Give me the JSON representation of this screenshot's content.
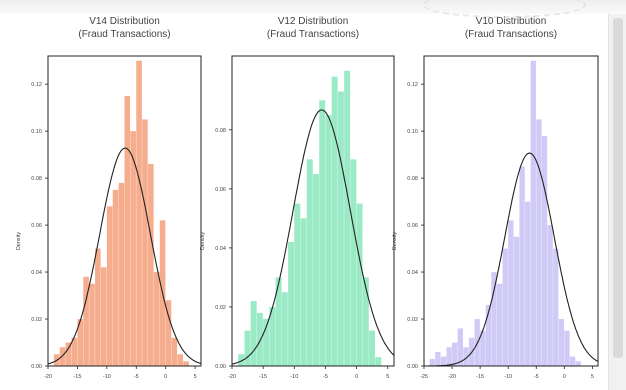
{
  "chart_data": [
    {
      "type": "histogram",
      "title": "V14 Distribution",
      "subtitle": "(Fraud Transactions)",
      "ylabel": "Density",
      "xlabel": "",
      "color": "#f4a482",
      "xlim": [
        -20,
        6
      ],
      "ylim": [
        0,
        0.132
      ],
      "xticks": [
        "-20",
        "-15",
        "-10",
        "-5",
        "0",
        "5"
      ],
      "yticks": [
        "0.00",
        "0.02",
        "0.04",
        "0.06",
        "0.08",
        "0.10",
        "0.12"
      ],
      "bins_x": [
        -18.5,
        -17.5,
        -16.5,
        -15.5,
        -14.5,
        -13.5,
        -12.5,
        -11.5,
        -10.5,
        -9.5,
        -8.5,
        -7.5,
        -6.5,
        -5.5,
        -4.5,
        -3.5,
        -2.5,
        -1.5,
        -0.5,
        0.5,
        1.5,
        2.5,
        3.5
      ],
      "bins_density": [
        0.005,
        0.008,
        0.01,
        0.012,
        0.02,
        0.038,
        0.035,
        0.05,
        0.042,
        0.068,
        0.075,
        0.078,
        0.115,
        0.1,
        0.13,
        0.105,
        0.086,
        0.04,
        0.062,
        0.028,
        0.012,
        0.005,
        0.002
      ],
      "fit": {
        "mean": -6.9,
        "std": 4.3
      }
    },
    {
      "type": "histogram",
      "title": "V12 Distribution",
      "subtitle": "(Fraud Transactions)",
      "ylabel": "Density",
      "xlabel": "",
      "color": "#8fe8bf",
      "xlim": [
        -20,
        6
      ],
      "ylim": [
        0,
        0.105
      ],
      "xticks": [
        "-20",
        "-15",
        "-10",
        "-5",
        "0",
        "5"
      ],
      "yticks": [
        "0.00",
        "0.02",
        "0.04",
        "0.06",
        "0.08"
      ],
      "bins_x": [
        -18.5,
        -17.5,
        -16.5,
        -15.5,
        -14.5,
        -13.5,
        -12.5,
        -11.5,
        -10.5,
        -9.5,
        -8.5,
        -7.5,
        -6.5,
        -5.5,
        -4.5,
        -3.5,
        -2.5,
        -1.5,
        -0.5,
        0.5,
        1.5,
        2.5,
        3.5
      ],
      "bins_density": [
        0.004,
        0.012,
        0.022,
        0.018,
        0.016,
        0.02,
        0.03,
        0.025,
        0.042,
        0.055,
        0.05,
        0.07,
        0.065,
        0.09,
        0.085,
        0.098,
        0.093,
        0.1,
        0.07,
        0.055,
        0.03,
        0.012,
        0.003
      ],
      "fit": {
        "mean": -5.6,
        "std": 4.6
      }
    },
    {
      "type": "histogram",
      "title": "V10 Distribution",
      "subtitle": "(Fraud Transactions)",
      "ylabel": "Density",
      "xlabel": "",
      "color": "#cbc4f6",
      "xlim": [
        -25,
        6
      ],
      "ylim": [
        0,
        0.132
      ],
      "xticks": [
        "-25",
        "-20",
        "-15",
        "-10",
        "-5",
        "0",
        "5"
      ],
      "yticks": [
        "0.00",
        "0.02",
        "0.04",
        "0.06",
        "0.08",
        "0.10",
        "0.12"
      ],
      "bins_x": [
        -23.5,
        -22.5,
        -21.5,
        -20.5,
        -19.5,
        -18.5,
        -17.5,
        -16.5,
        -15.5,
        -14.5,
        -13.5,
        -12.5,
        -11.5,
        -10.5,
        -9.5,
        -8.5,
        -7.5,
        -6.5,
        -5.5,
        -4.5,
        -3.5,
        -2.5,
        -1.5,
        -0.5,
        0.5,
        1.5,
        2.5
      ],
      "bins_density": [
        0.003,
        0.006,
        0.004,
        0.008,
        0.01,
        0.016,
        0.008,
        0.012,
        0.02,
        0.015,
        0.026,
        0.04,
        0.035,
        0.05,
        0.062,
        0.055,
        0.085,
        0.07,
        0.13,
        0.105,
        0.098,
        0.06,
        0.05,
        0.02,
        0.015,
        0.004,
        0.002
      ],
      "fit": {
        "mean": -6.2,
        "std": 4.4
      }
    }
  ]
}
